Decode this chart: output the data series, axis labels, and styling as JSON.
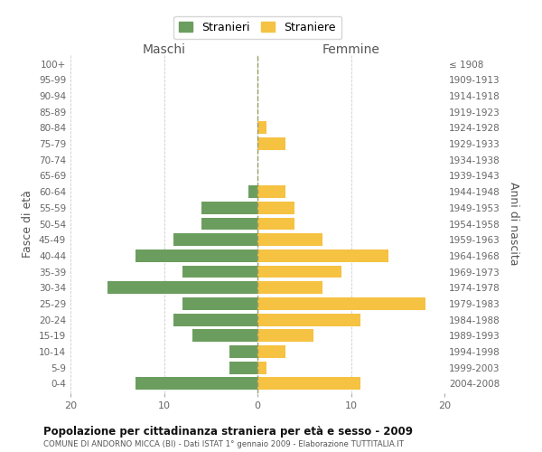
{
  "age_groups": [
    "0-4",
    "5-9",
    "10-14",
    "15-19",
    "20-24",
    "25-29",
    "30-34",
    "35-39",
    "40-44",
    "45-49",
    "50-54",
    "55-59",
    "60-64",
    "65-69",
    "70-74",
    "75-79",
    "80-84",
    "85-89",
    "90-94",
    "95-99",
    "100+"
  ],
  "birth_years": [
    "2004-2008",
    "1999-2003",
    "1994-1998",
    "1989-1993",
    "1984-1988",
    "1979-1983",
    "1974-1978",
    "1969-1973",
    "1964-1968",
    "1959-1963",
    "1954-1958",
    "1949-1953",
    "1944-1948",
    "1939-1943",
    "1934-1938",
    "1929-1933",
    "1924-1928",
    "1919-1923",
    "1914-1918",
    "1909-1913",
    "≤ 1908"
  ],
  "maschi": [
    13,
    3,
    3,
    7,
    9,
    8,
    16,
    8,
    13,
    9,
    6,
    6,
    1,
    0,
    0,
    0,
    0,
    0,
    0,
    0,
    0
  ],
  "femmine": [
    11,
    1,
    3,
    6,
    11,
    18,
    7,
    9,
    14,
    7,
    4,
    4,
    3,
    0,
    0,
    3,
    1,
    0,
    0,
    0,
    0
  ],
  "maschi_color": "#6b9e5e",
  "femmine_color": "#f5c242",
  "bg_color": "#ffffff",
  "grid_color": "#cccccc",
  "title": "Popolazione per cittadinanza straniera per età e sesso - 2009",
  "subtitle": "COMUNE DI ANDORNO MICCA (BI) - Dati ISTAT 1° gennaio 2009 - Elaborazione TUTTITALIA.IT",
  "ylabel_left": "Fasce di età",
  "ylabel_right": "Anni di nascita",
  "xlabel_left": "Maschi",
  "xlabel_right": "Femmine",
  "legend_maschi": "Stranieri",
  "legend_femmine": "Straniere",
  "xlim": 20
}
